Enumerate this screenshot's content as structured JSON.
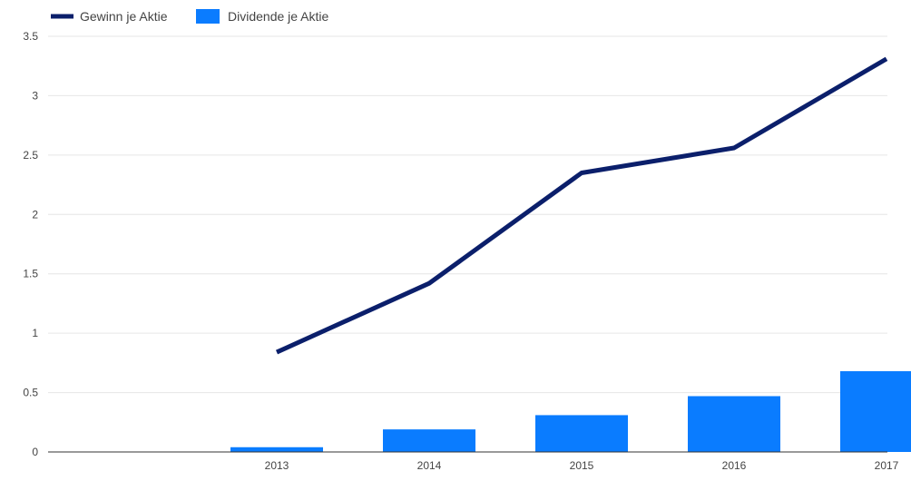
{
  "chart_data": {
    "type": "bar",
    "categories": [
      "2013",
      "2014",
      "2015",
      "2016",
      "2017"
    ],
    "series": [
      {
        "name": "Gewinn je Aktie",
        "type": "line",
        "color": "#0b1f6b",
        "values": [
          0.84,
          1.42,
          2.35,
          2.56,
          3.31
        ]
      },
      {
        "name": "Dividende je Aktie",
        "type": "bar",
        "color": "#0a7cff",
        "values": [
          0.04,
          0.19,
          0.31,
          0.47,
          0.68
        ]
      }
    ],
    "y_ticks": [
      "0",
      "0.5",
      "1",
      "1.5",
      "2",
      "2.5",
      "3",
      "3.5"
    ],
    "ylim": [
      0,
      3.5
    ],
    "grid": true,
    "legend_position": "top-left"
  }
}
